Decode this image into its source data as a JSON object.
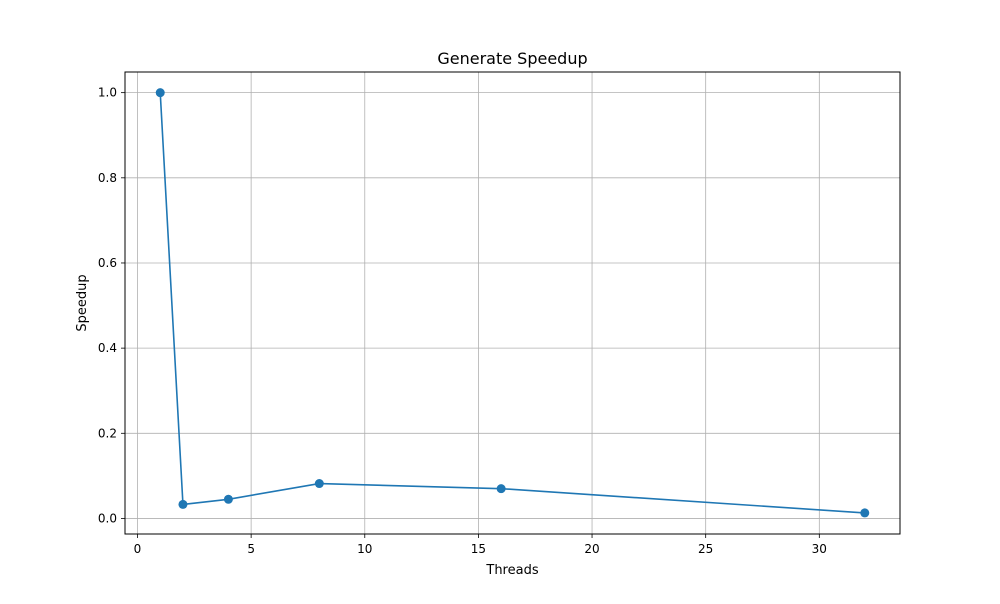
{
  "chart_data": {
    "type": "line",
    "title": "Generate Speedup",
    "xlabel": "Threads",
    "ylabel": "Speedup",
    "xlim": [
      -0.55,
      33.55
    ],
    "ylim": [
      -0.0365,
      1.0485
    ],
    "x_ticks": [
      0,
      5,
      10,
      15,
      20,
      25,
      30
    ],
    "x_tick_labels": [
      "0",
      "5",
      "10",
      "15",
      "20",
      "25",
      "30"
    ],
    "y_ticks": [
      0.0,
      0.2,
      0.4,
      0.6,
      0.8,
      1.0
    ],
    "y_tick_labels": [
      "0.0",
      "0.2",
      "0.4",
      "0.6",
      "0.8",
      "1.0"
    ],
    "grid": true,
    "marker": "circle",
    "series": [
      {
        "x": [
          1,
          2,
          4,
          8,
          16,
          32
        ],
        "values": [
          1.0,
          0.033,
          0.045,
          0.082,
          0.07,
          0.013
        ],
        "color": "#1f77b4"
      }
    ]
  }
}
